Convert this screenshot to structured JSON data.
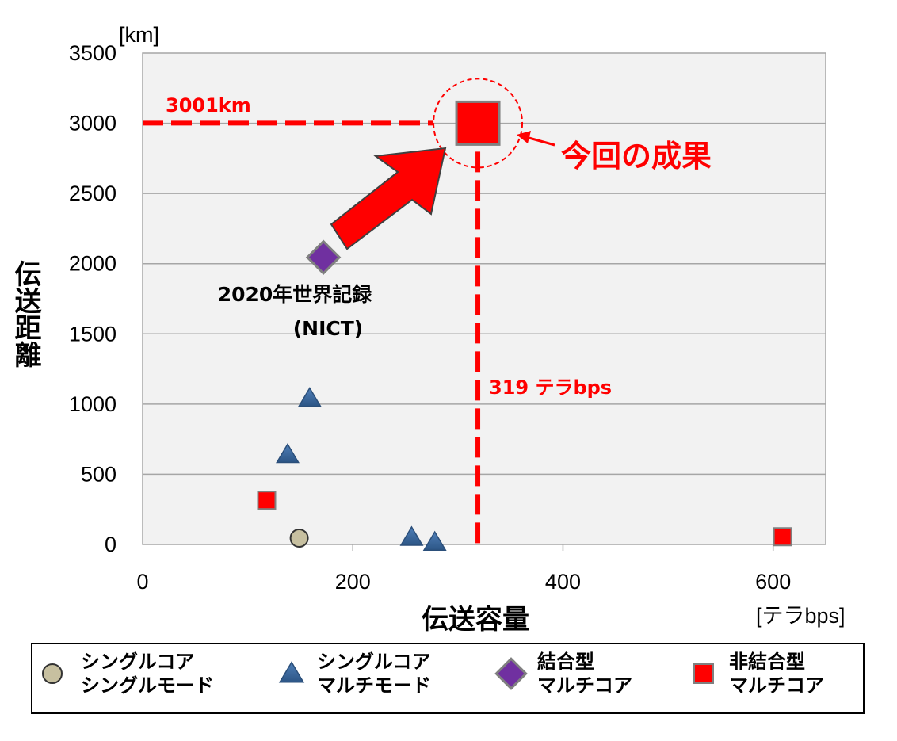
{
  "chart_data": {
    "type": "scatter",
    "title": "",
    "xlabel": "伝送容量",
    "ylabel": "伝送距離",
    "x_unit": "[テラbps]",
    "y_unit": "[km]",
    "xlim": [
      0,
      650
    ],
    "ylim": [
      0,
      3500
    ],
    "x_ticks": [
      "0",
      "200",
      "400",
      "600"
    ],
    "y_ticks": [
      "0",
      "500",
      "1000",
      "1500",
      "2000",
      "2500",
      "3000",
      "3500"
    ],
    "grid": "horizontal",
    "legend_position": "bottom",
    "series": [
      {
        "name": "シングルコア シングルモード",
        "name_lines": [
          "シングルコア",
          "シングルモード"
        ],
        "marker": "circle",
        "color": "#c7c0a0",
        "points": [
          {
            "x": 149,
            "y": 45
          }
        ]
      },
      {
        "name": "シングルコア マルチモード",
        "name_lines": [
          "シングルコア",
          "マルチモード"
        ],
        "marker": "triangle",
        "color": "#3a6698",
        "points": [
          {
            "x": 138,
            "y": 640
          },
          {
            "x": 159,
            "y": 1040
          },
          {
            "x": 256,
            "y": 50
          },
          {
            "x": 278,
            "y": 15
          }
        ]
      },
      {
        "name": "結合型 マルチコア",
        "name_lines": [
          "結合型",
          "マルチコア"
        ],
        "marker": "diamond",
        "color": "#7030a0",
        "points": [
          {
            "x": 172,
            "y": 2045
          }
        ]
      },
      {
        "name": "非結合型 マルチコア",
        "name_lines": [
          "非結合型",
          "マルチコア"
        ],
        "marker": "square",
        "color": "#ff0000",
        "points": [
          {
            "x": 118,
            "y": 315
          },
          {
            "x": 609,
            "y": 55
          },
          {
            "x": 319,
            "y": 3001,
            "highlight": true
          }
        ]
      }
    ],
    "annotations": {
      "distance_label": "3001km",
      "capacity_label": "319 テラbps",
      "result_label": "今回の成果",
      "record_label_line1": "2020年世界記録",
      "record_label_line2": "(NICT)"
    },
    "reference_lines": {
      "x": 319,
      "y": 3001
    }
  },
  "colors": {
    "plot_bg": "#f2f2f2",
    "grid": "#a6a6a6",
    "highlight": "#ff0000"
  }
}
